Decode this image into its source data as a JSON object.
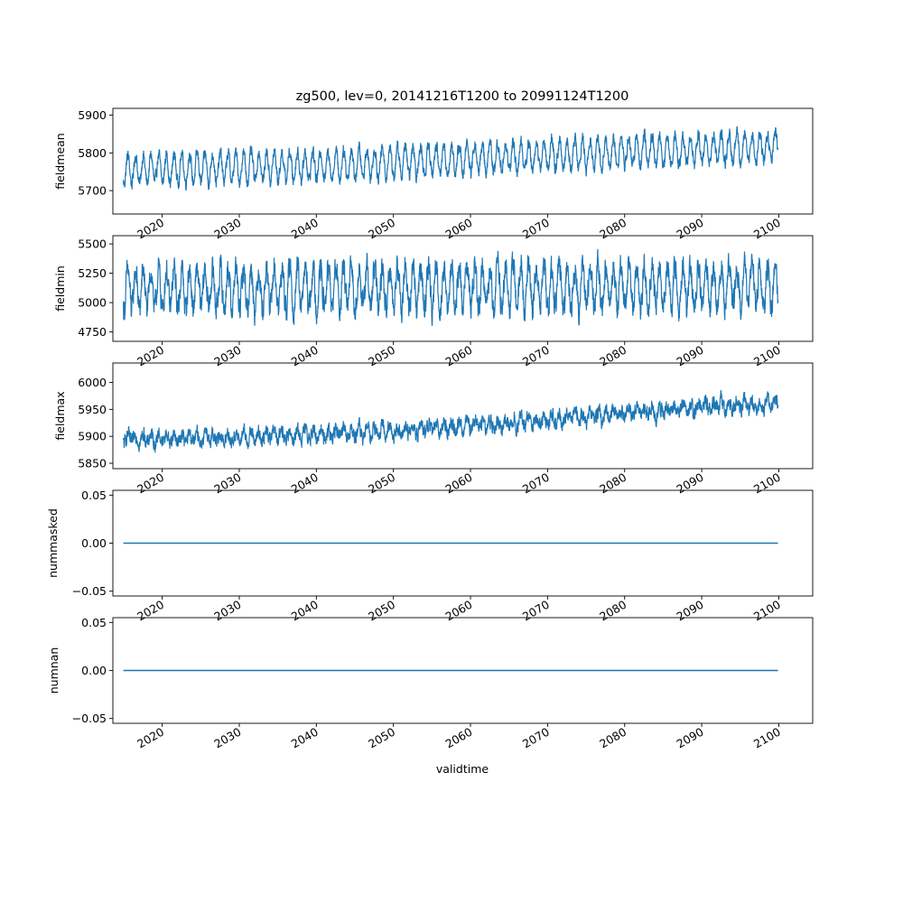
{
  "title": "zg500, lev=0, 20141216T1200 to 20991124T1200",
  "xlabel": "validtime",
  "colors": {
    "series": "#1f77b4",
    "axes": "#000000",
    "background": "#ffffff"
  },
  "chart_data": [
    {
      "type": "line",
      "ylabel": "fieldmean",
      "xlim": [
        2013.6,
        2104.4
      ],
      "ylim": [
        5638,
        5918
      ],
      "yticks": [
        5700,
        5800,
        5900
      ],
      "ytick_labels": [
        "5700",
        "5800",
        "5900"
      ],
      "xticks": [
        2020,
        2030,
        2040,
        2050,
        2060,
        2070,
        2080,
        2090,
        2100
      ],
      "xtick_labels": [
        "2020",
        "2030",
        "2040",
        "2050",
        "2060",
        "2070",
        "2080",
        "2090",
        "2100"
      ],
      "x_start": 2014.96,
      "x_end": 2099.9,
      "trend": [
        [
          2015,
          5755
        ],
        [
          2040,
          5767
        ],
        [
          2060,
          5785
        ],
        [
          2080,
          5803
        ],
        [
          2100,
          5815
        ]
      ],
      "seasonal_amplitude": 38,
      "noise": 14,
      "range": [
        5655,
        5912
      ],
      "grid": false
    },
    {
      "type": "line",
      "ylabel": "fieldmin",
      "xlim": [
        2013.6,
        2104.4
      ],
      "ylim": [
        4670,
        5570
      ],
      "yticks": [
        4750,
        5000,
        5250,
        5500
      ],
      "ytick_labels": [
        "4750",
        "5000",
        "5250",
        "5500"
      ],
      "xticks": [
        2020,
        2030,
        2040,
        2050,
        2060,
        2070,
        2080,
        2090,
        2100
      ],
      "xtick_labels": [
        "2020",
        "2030",
        "2040",
        "2050",
        "2060",
        "2070",
        "2080",
        "2090",
        "2100"
      ],
      "x_start": 2014.96,
      "x_end": 2099.9,
      "trend": [
        [
          2015,
          5110
        ],
        [
          2100,
          5150
        ]
      ],
      "seasonal_amplitude": 170,
      "noise": 90,
      "range": [
        4700,
        5530
      ],
      "grid": false
    },
    {
      "type": "line",
      "ylabel": "fieldmax",
      "xlim": [
        2013.6,
        2104.4
      ],
      "ylim": [
        5840,
        6036
      ],
      "yticks": [
        5850,
        5900,
        5950,
        6000
      ],
      "ytick_labels": [
        "5850",
        "5900",
        "5950",
        "6000"
      ],
      "xticks": [
        2020,
        2030,
        2040,
        2050,
        2060,
        2070,
        2080,
        2090,
        2100
      ],
      "xtick_labels": [
        "2020",
        "2030",
        "2040",
        "2050",
        "2060",
        "2070",
        "2080",
        "2090",
        "2100"
      ],
      "x_start": 2014.96,
      "x_end": 2099.9,
      "trend": [
        [
          2015,
          5895
        ],
        [
          2030,
          5898
        ],
        [
          2050,
          5910
        ],
        [
          2070,
          5930
        ],
        [
          2090,
          5955
        ],
        [
          2100,
          5960
        ]
      ],
      "seasonal_amplitude": 9,
      "noise": 11,
      "range": [
        5850,
        6027
      ],
      "grid": false
    },
    {
      "type": "line",
      "ylabel": "nummasked",
      "xlim": [
        2013.6,
        2104.4
      ],
      "ylim": [
        -0.055,
        0.055
      ],
      "yticks": [
        -0.05,
        0.0,
        0.05
      ],
      "ytick_labels": [
        "−0.05",
        "0.00",
        "0.05"
      ],
      "xticks": [
        2020,
        2030,
        2040,
        2050,
        2060,
        2070,
        2080,
        2090,
        2100
      ],
      "xtick_labels": [
        "2020",
        "2030",
        "2040",
        "2050",
        "2060",
        "2070",
        "2080",
        "2090",
        "2100"
      ],
      "x": [
        2014.96,
        2099.9
      ],
      "y": [
        0,
        0
      ],
      "grid": false
    },
    {
      "type": "line",
      "ylabel": "numnan",
      "xlim": [
        2013.6,
        2104.4
      ],
      "ylim": [
        -0.055,
        0.055
      ],
      "yticks": [
        -0.05,
        0.0,
        0.05
      ],
      "ytick_labels": [
        "−0.05",
        "0.00",
        "0.05"
      ],
      "xticks": [
        2020,
        2030,
        2040,
        2050,
        2060,
        2070,
        2080,
        2090,
        2100
      ],
      "xtick_labels": [
        "2020",
        "2030",
        "2040",
        "2050",
        "2060",
        "2070",
        "2080",
        "2090",
        "2100"
      ],
      "x": [
        2014.96,
        2099.9
      ],
      "y": [
        0,
        0
      ],
      "grid": false
    }
  ]
}
